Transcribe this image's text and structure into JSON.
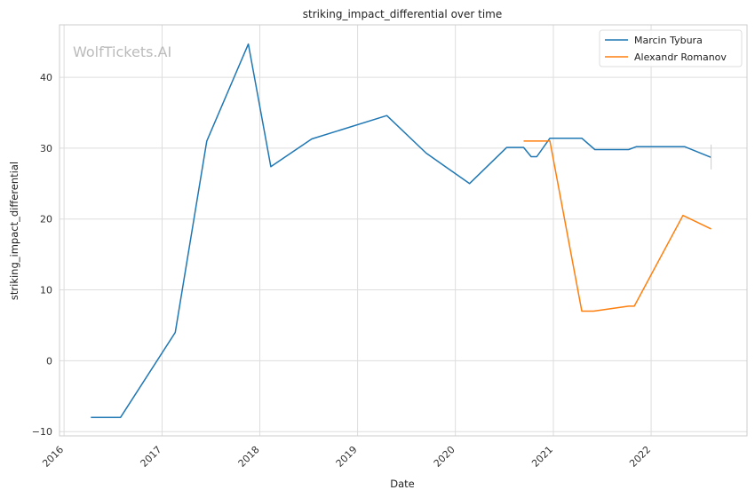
{
  "watermark": "WolfTickets.AI",
  "chart_data": {
    "type": "line",
    "title": "striking_impact_differential over time",
    "xlabel": "Date",
    "ylabel": "striking_impact_differential",
    "x_ticks": [
      "2016",
      "2017",
      "2018",
      "2019",
      "2020",
      "2021",
      "2022"
    ],
    "y_ticks": [
      -10,
      0,
      10,
      20,
      30,
      40
    ],
    "xlim": [
      "2015-12-15",
      "2022-12-25"
    ],
    "ylim": [
      -10.6,
      47.4
    ],
    "grid": true,
    "legend_position": "top-right",
    "series": [
      {
        "name": "Marcin Tybura",
        "color": "#1f77b4",
        "points": [
          [
            "2016-04-10",
            -8
          ],
          [
            "2016-07-30",
            -8
          ],
          [
            "2017-02-19",
            4
          ],
          [
            "2017-06-17",
            31
          ],
          [
            "2017-11-19",
            44.7
          ],
          [
            "2018-02-11",
            27.4
          ],
          [
            "2018-07-14",
            31.3
          ],
          [
            "2019-04-20",
            34.6
          ],
          [
            "2019-09-14",
            29.3
          ],
          [
            "2020-02-23",
            25
          ],
          [
            "2020-07-11",
            30.1
          ],
          [
            "2020-09-12",
            30.1
          ],
          [
            "2020-10-10",
            28.8
          ],
          [
            "2020-10-31",
            28.8
          ],
          [
            "2020-12-19",
            31.4
          ],
          [
            "2021-04-17",
            31.4
          ],
          [
            "2021-06-05",
            29.8
          ],
          [
            "2021-10-09",
            29.8
          ],
          [
            "2021-11-06",
            30.2
          ],
          [
            "2022-05-07",
            30.2
          ],
          [
            "2022-08-13",
            28.7
          ]
        ]
      },
      {
        "name": "Alexandr Romanov",
        "color": "#ff7f0e",
        "points": [
          [
            "2020-09-12",
            31
          ],
          [
            "2020-11-07",
            31
          ],
          [
            "2020-12-19",
            31
          ],
          [
            "2021-04-17",
            7
          ],
          [
            "2021-05-31",
            7
          ],
          [
            "2021-10-09",
            7.7
          ],
          [
            "2021-10-30",
            7.7
          ],
          [
            "2022-04-30",
            20.5
          ],
          [
            "2022-08-13",
            18.6
          ]
        ]
      }
    ]
  }
}
